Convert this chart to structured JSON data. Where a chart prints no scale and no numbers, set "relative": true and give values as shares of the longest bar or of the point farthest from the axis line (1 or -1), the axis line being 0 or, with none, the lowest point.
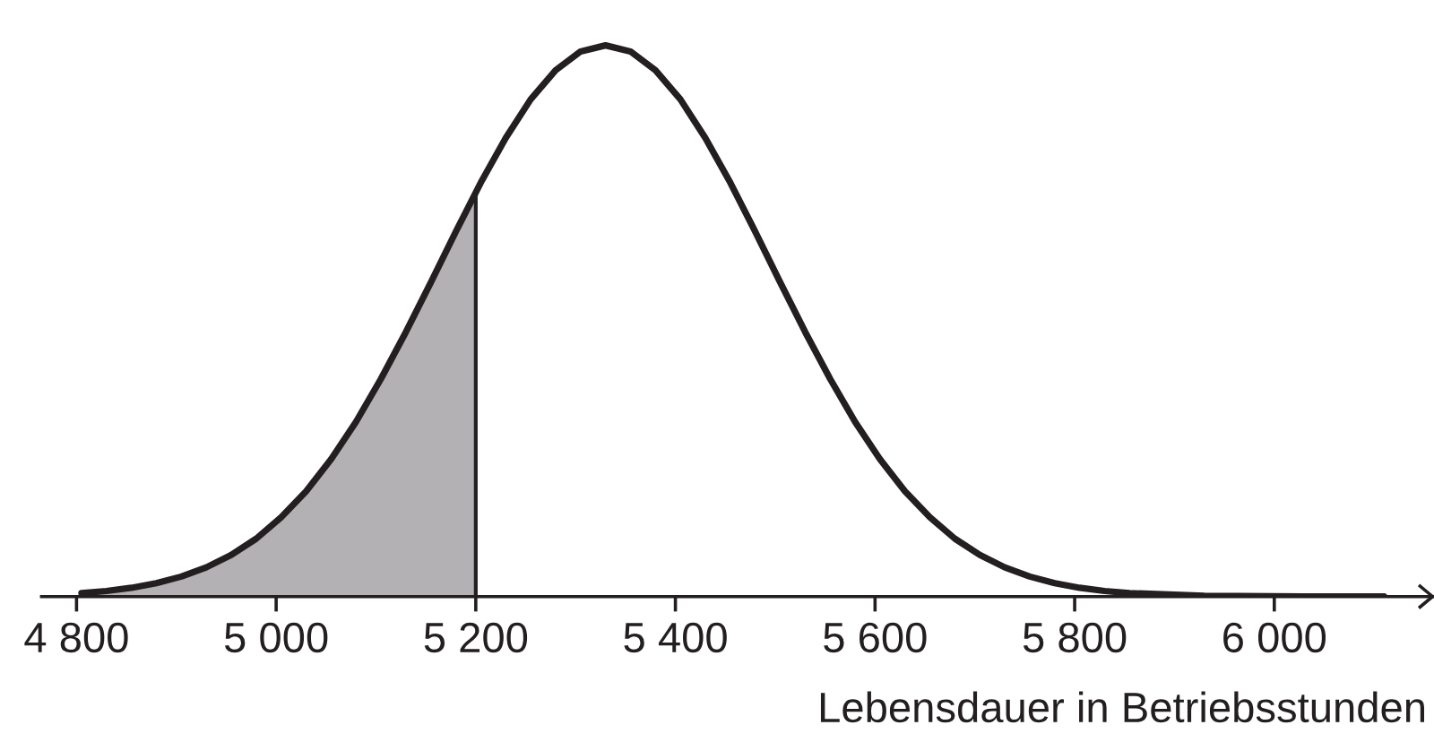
{
  "chart_data": {
    "type": "line",
    "relative": true,
    "xlabel": "Lebensdauer in Betriebsstunden",
    "xlim": [
      4765,
      6160
    ],
    "xticks": [
      {
        "value": 4800,
        "label": "4 800"
      },
      {
        "value": 5000,
        "label": "5 000"
      },
      {
        "value": 5200,
        "label": "5 200"
      },
      {
        "value": 5400,
        "label": "5 400"
      },
      {
        "value": 5600,
        "label": "5 600"
      },
      {
        "value": 5800,
        "label": "5 800"
      },
      {
        "value": 6000,
        "label": "6 000"
      }
    ],
    "tick_labels": "x",
    "legend": false,
    "series": [
      {
        "type": "area",
        "color": "#b3b1b3",
        "x": [
          4805,
          4830,
          4855,
          4880,
          4905,
          4930,
          4955,
          4980,
          5005,
          5030,
          5055,
          5080,
          5105,
          5130,
          5155,
          5180,
          5200
        ],
        "values": [
          0.0063,
          0.0101,
          0.0159,
          0.0243,
          0.0363,
          0.053,
          0.0756,
          0.105,
          0.144,
          0.191,
          0.249,
          0.317,
          0.395,
          0.48,
          0.57,
          0.662,
          0.733
        ]
      },
      {
        "color": "#231f20",
        "x": [
          4805,
          4830,
          4855,
          4880,
          4905,
          4930,
          4955,
          4980,
          5005,
          5030,
          5055,
          5080,
          5105,
          5130,
          5155,
          5180,
          5205,
          5230,
          5255,
          5280,
          5305,
          5330,
          5355,
          5380,
          5405,
          5430,
          5455,
          5480,
          5505,
          5530,
          5555,
          5580,
          5605,
          5630,
          5655,
          5680,
          5705,
          5730,
          5755,
          5780,
          5805,
          5830,
          5855,
          5930,
          6030,
          6110
        ],
        "values": [
          0.0063,
          0.0101,
          0.0159,
          0.0243,
          0.0363,
          0.053,
          0.0756,
          0.105,
          0.144,
          0.191,
          0.249,
          0.317,
          0.395,
          0.48,
          0.57,
          0.662,
          0.751,
          0.832,
          0.902,
          0.955,
          0.989,
          1,
          0.989,
          0.955,
          0.902,
          0.832,
          0.751,
          0.662,
          0.57,
          0.48,
          0.395,
          0.317,
          0.249,
          0.191,
          0.144,
          0.105,
          0.0756,
          0.053,
          0.0363,
          0.0243,
          0.0159,
          0.0101,
          0.0063,
          0.0013,
          0.0001,
          0
        ]
      }
    ]
  }
}
